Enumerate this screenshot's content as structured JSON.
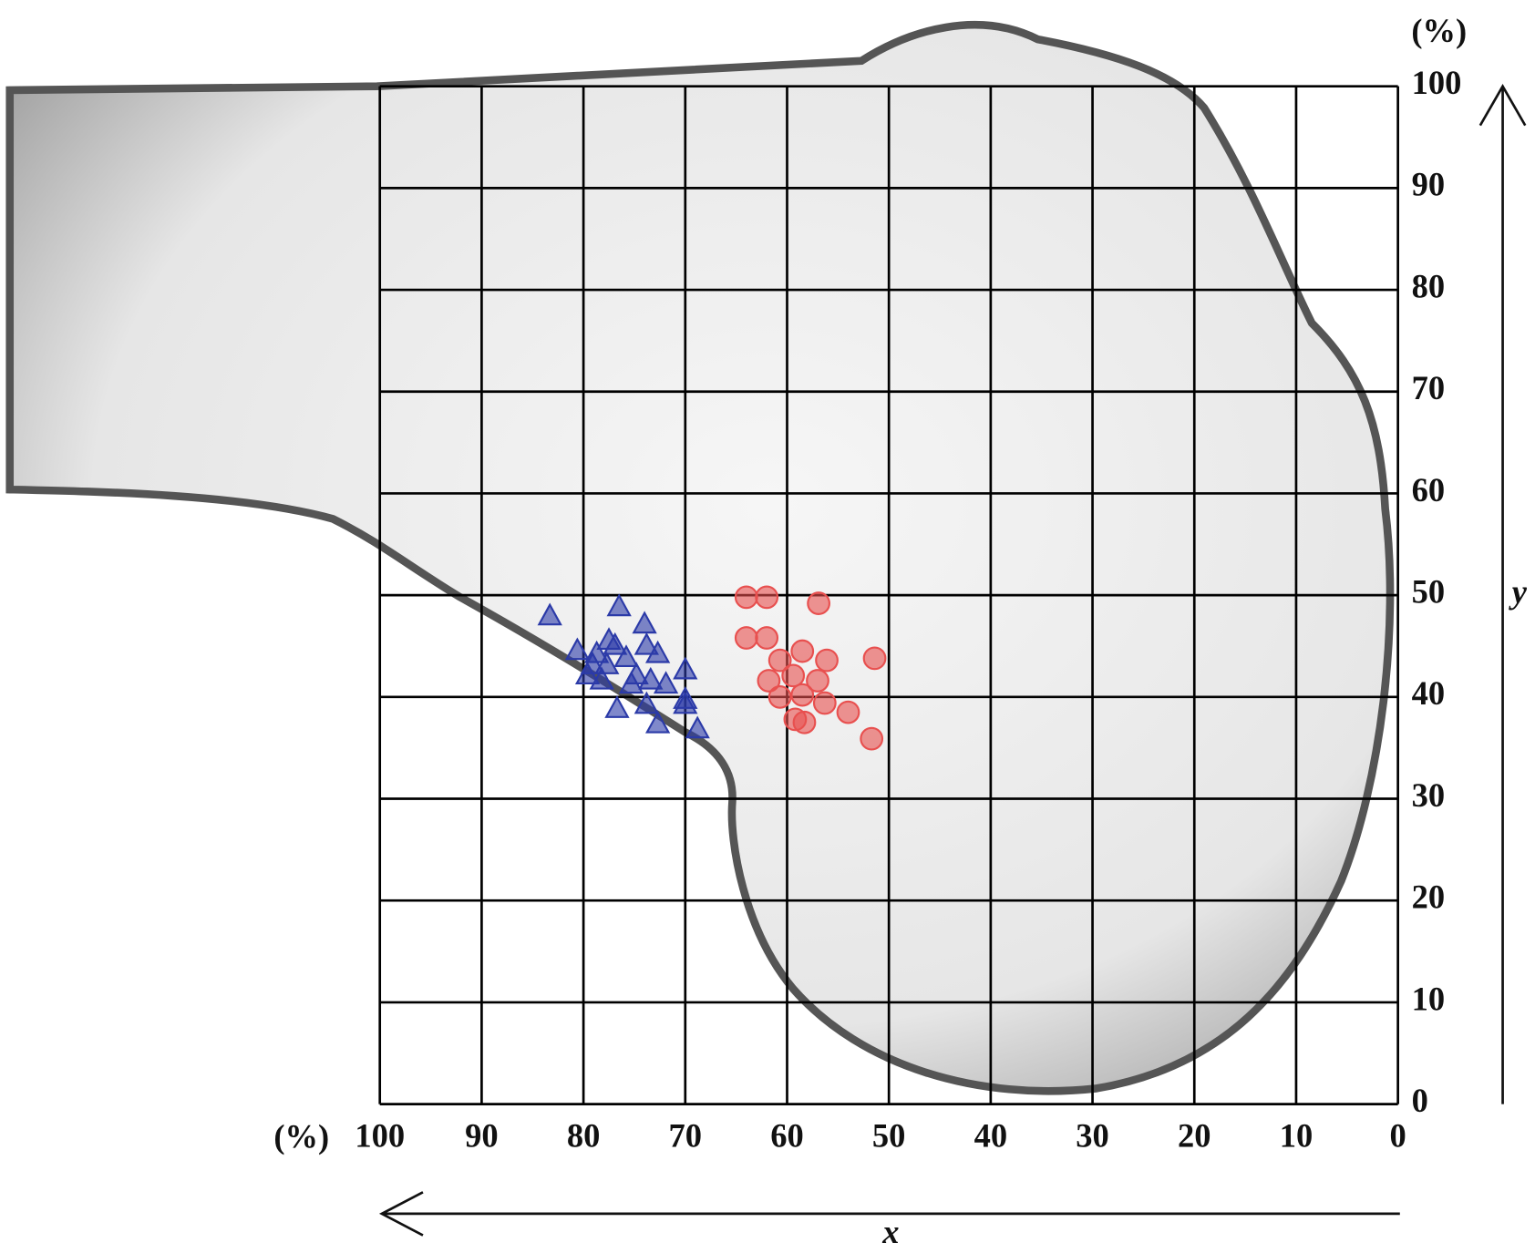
{
  "chart_data": {
    "type": "scatter",
    "x_label": "x",
    "y_label": "y",
    "x_unit": "(%)",
    "y_unit": "(%)",
    "xlim": [
      100,
      0
    ],
    "ylim": [
      0,
      100
    ],
    "xticks": [
      100,
      90,
      80,
      70,
      60,
      50,
      40,
      30,
      20,
      10,
      0
    ],
    "yticks": [
      0,
      10,
      20,
      30,
      40,
      50,
      60,
      70,
      80,
      90,
      100
    ],
    "grid": true,
    "series": [
      {
        "color": "#2b3aa8",
        "marker": "triangle",
        "x": [
          83.3,
          76.5,
          74.0,
          80.6,
          77.5,
          76.9,
          78.7,
          75.8,
          73.8,
          72.7,
          70.0,
          79.6,
          78.2,
          74.8,
          73.4,
          71.9,
          70.0,
          76.7,
          73.8,
          72.7,
          70.0,
          68.8,
          77.7,
          75.3,
          79.1
        ],
        "values": [
          47.9,
          48.8,
          47.1,
          44.5,
          45.5,
          45.0,
          44.2,
          43.8,
          45.0,
          44.2,
          42.6,
          42.1,
          41.6,
          42.1,
          41.6,
          41.2,
          39.7,
          38.8,
          39.2,
          37.3,
          39.2,
          36.8,
          43.1,
          41.2,
          43.1
        ]
      },
      {
        "color": "#e8504f",
        "marker": "circle",
        "x": [
          64.0,
          62.0,
          56.9,
          64.0,
          62.0,
          51.4,
          60.7,
          58.5,
          56.1,
          61.8,
          59.4,
          57.0,
          60.7,
          58.5,
          56.3,
          54.0,
          59.2,
          58.3,
          51.7
        ],
        "values": [
          49.8,
          49.8,
          49.2,
          45.8,
          45.8,
          43.8,
          43.6,
          44.5,
          43.6,
          41.6,
          42.1,
          41.6,
          40.0,
          40.2,
          39.4,
          38.5,
          37.8,
          37.5,
          35.9
        ]
      }
    ]
  }
}
